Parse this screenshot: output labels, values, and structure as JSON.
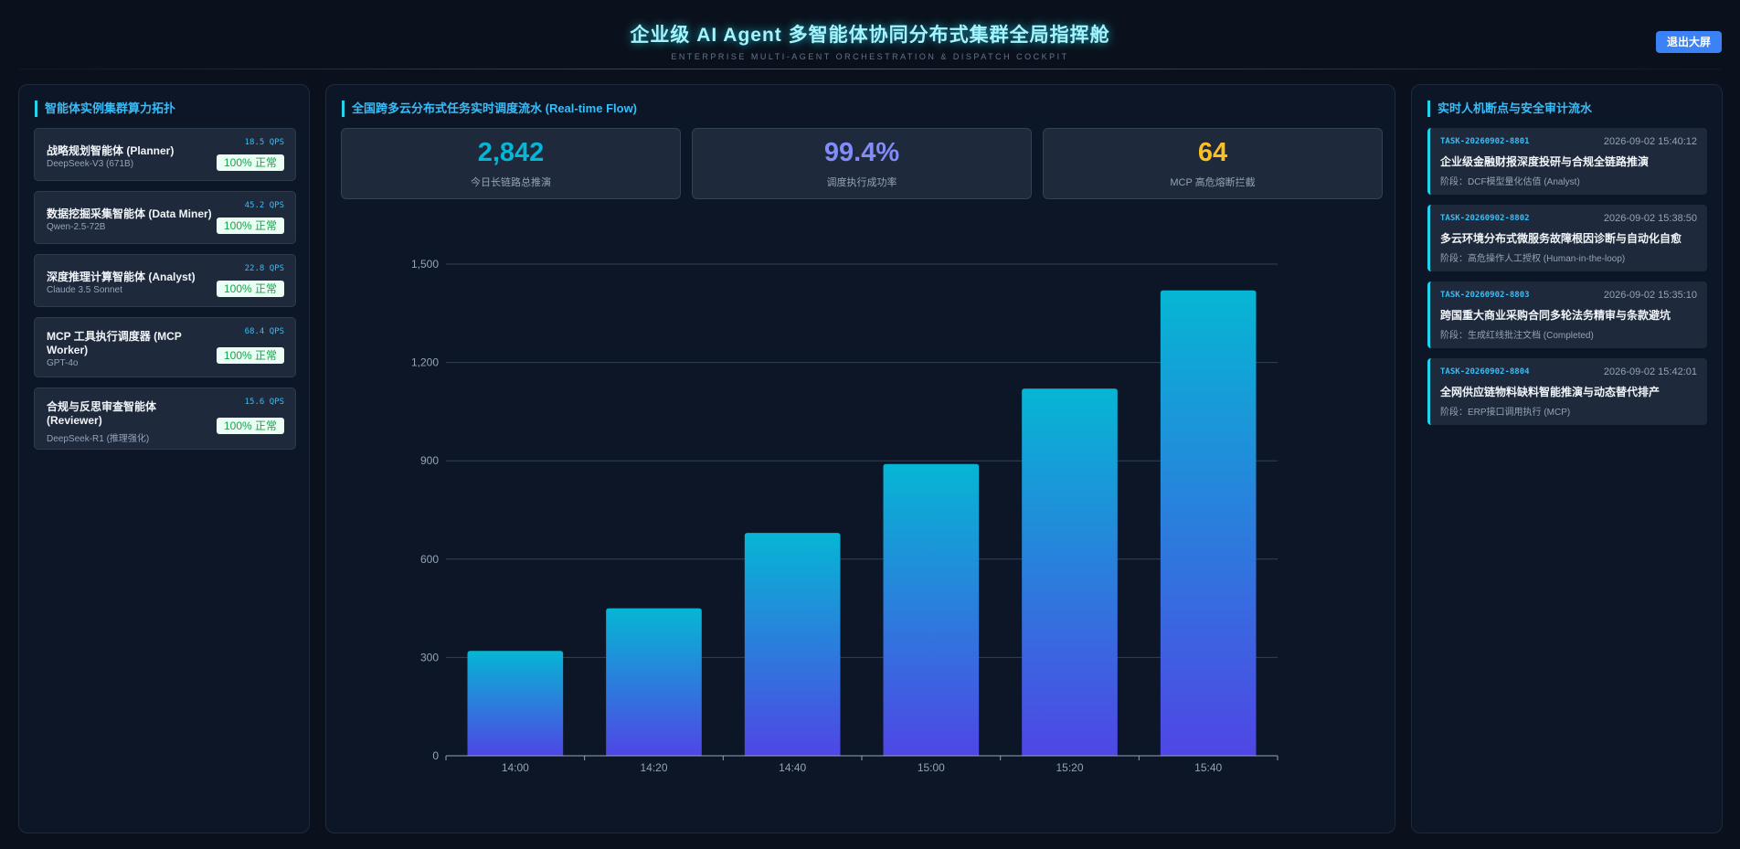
{
  "header": {
    "title": "企业级 AI Agent 多智能体协同分布式集群全局指挥舱",
    "subtitle": "ENTERPRISE MULTI-AGENT ORCHESTRATION & DISPATCH COCKPIT",
    "exit_label": "退出大屏"
  },
  "left_panel": {
    "title": "智能体实例集群算力拓扑",
    "agents": [
      {
        "name": "战略规划智能体 (Planner)",
        "model": "DeepSeek-V3 (671B)",
        "qps": "18.5 QPS",
        "status": "100% 正常"
      },
      {
        "name": "数据挖掘采集智能体 (Data Miner)",
        "model": "Qwen-2.5-72B",
        "qps": "45.2 QPS",
        "status": "100% 正常"
      },
      {
        "name": "深度推理计算智能体 (Analyst)",
        "model": "Claude 3.5 Sonnet",
        "qps": "22.8 QPS",
        "status": "100% 正常"
      },
      {
        "name_line1": "MCP 工具执行调度器 (MCP",
        "name_line2": "Worker)",
        "model": "GPT-4o",
        "qps": "68.4 QPS",
        "status": "100% 正常"
      },
      {
        "name_line1": "合规与反思审查智能体",
        "name_line2": "(Reviewer)",
        "model": "DeepSeek-R1 (推理强化)",
        "qps": "15.6 QPS",
        "status": "100% 正常"
      }
    ]
  },
  "center_panel": {
    "title": "全国跨多云分布式任务实时调度流水 (Real-time Flow)",
    "stats": [
      {
        "value": "2,842",
        "label": "今日长链路总推演",
        "color": "#06b6d4"
      },
      {
        "value": "99.4%",
        "label": "调度执行成功率",
        "color": "#818cf8"
      },
      {
        "value": "64",
        "label": "MCP 高危熔断拦截",
        "color": "#fbbf24"
      }
    ]
  },
  "chart_data": {
    "type": "bar",
    "categories": [
      "14:00",
      "14:20",
      "14:40",
      "15:00",
      "15:20",
      "15:40"
    ],
    "values": [
      320,
      450,
      680,
      890,
      1120,
      1420
    ],
    "ylim": [
      0,
      1500
    ],
    "yticks": [
      0,
      300,
      600,
      900,
      1200,
      1500
    ],
    "ytick_labels": [
      "0",
      "300",
      "600",
      "900",
      "1,200",
      "1,500"
    ],
    "grid": true,
    "colors": {
      "bar_top": "#06b6d4",
      "bar_bottom": "#4f46e5",
      "grid": "#334155",
      "tick": "#94a3b8"
    }
  },
  "right_panel": {
    "title": "实时人机断点与安全审计流水",
    "tasks": [
      {
        "id": "TASK-20260902-8801",
        "time": "2026-09-02 15:40:12",
        "title": "企业级金融财报深度投研与合规全链路推演",
        "stage": "阶段：DCF模型量化估值 (Analyst)"
      },
      {
        "id": "TASK-20260902-8802",
        "time": "2026-09-02 15:38:50",
        "title": "多云环境分布式微服务故障根因诊断与自动化自愈",
        "stage": "阶段：高危操作人工授权 (Human-in-the-loop)"
      },
      {
        "id": "TASK-20260902-8803",
        "time": "2026-09-02 15:35:10",
        "title": "跨国重大商业采购合同多轮法务精审与条款避坑",
        "stage": "阶段：生成红线批注文档 (Completed)"
      },
      {
        "id": "TASK-20260902-8804",
        "time": "2026-09-02 15:42:01",
        "title": "全网供应链物料缺料智能推演与动态替代排产",
        "stage": "阶段：ERP接口调用执行 (MCP)"
      }
    ]
  }
}
